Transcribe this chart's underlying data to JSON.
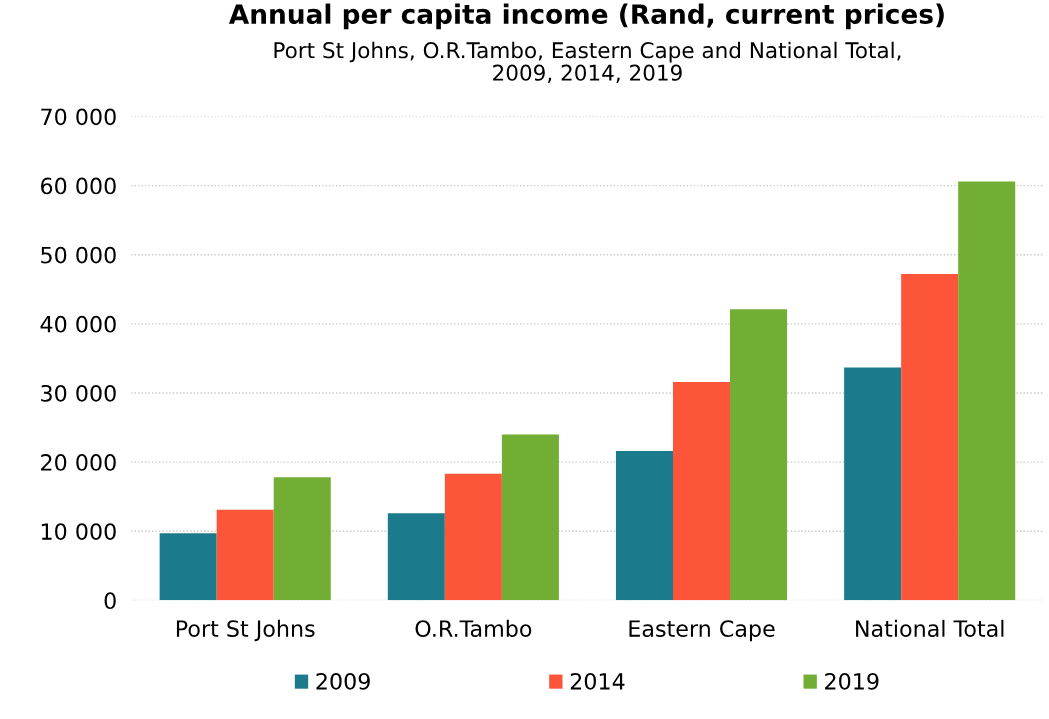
{
  "chart_data": {
    "type": "bar",
    "title": "Annual per capita income (Rand, current prices)",
    "subtitle": "Port St Johns, O.R.Tambo, Eastern Cape and National Total,\n2009, 2014, 2019",
    "categories": [
      "Port St Johns",
      "O.R.Tambo",
      "Eastern Cape",
      "National Total"
    ],
    "series": [
      {
        "name": "2009",
        "color": "#1b7a8c",
        "values": [
          9700,
          12600,
          21600,
          33700
        ]
      },
      {
        "name": "2014",
        "color": "#fd5539",
        "values": [
          13100,
          18300,
          31600,
          47200
        ]
      },
      {
        "name": "2019",
        "color": "#72ae33",
        "values": [
          17800,
          24000,
          42100,
          60600
        ]
      }
    ],
    "ylim": [
      0,
      70000
    ],
    "yticks": [
      {
        "value": 0,
        "label": "0"
      },
      {
        "value": 10000,
        "label": "10 000"
      },
      {
        "value": 20000,
        "label": "20 000"
      },
      {
        "value": 30000,
        "label": "30 000"
      },
      {
        "value": 40000,
        "label": "40 000"
      },
      {
        "value": 50000,
        "label": "50 000"
      },
      {
        "value": 60000,
        "label": "60 000"
      },
      {
        "value": 70000,
        "label": "70 000"
      }
    ],
    "grid": "y",
    "legend": "bottom"
  }
}
